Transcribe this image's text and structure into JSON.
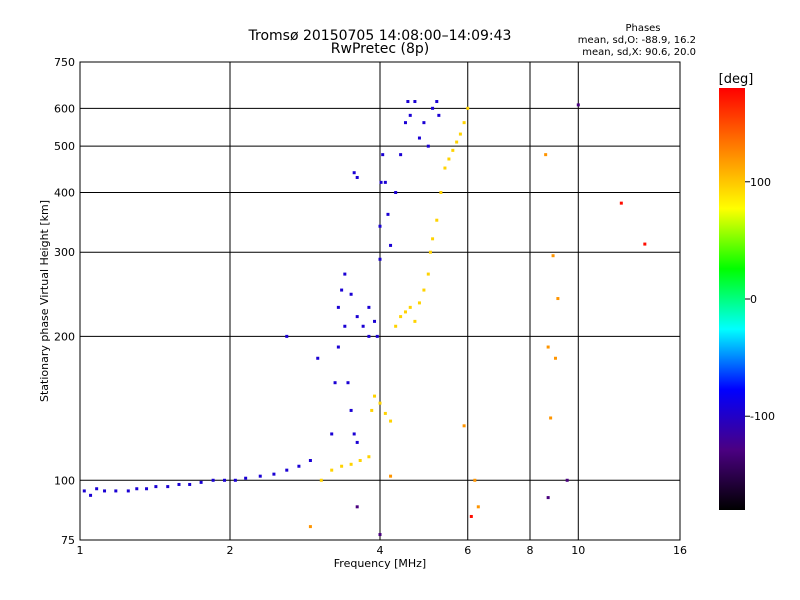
{
  "chart_data": {
    "type": "scatter",
    "title": "Tromsø 20150705 14:08:00–14:09:43",
    "subtitle": "RwPretec (8p)",
    "xlabel": "Frequency [MHz]",
    "ylabel": "Stationary phase Virtual Height [km]",
    "xscale": "log",
    "yscale": "log",
    "xlim": [
      1,
      16
    ],
    "ylim": [
      75,
      750
    ],
    "xticks": [
      1,
      2,
      4,
      6,
      8,
      10,
      16
    ],
    "yticks": [
      75,
      100,
      200,
      300,
      400,
      500,
      600,
      750
    ],
    "grid": true,
    "phase_info": {
      "title": "Phases",
      "line1": "mean, sd,O: -88.9, 16.2",
      "line2": "mean, sd,X: 90.6, 20.0"
    },
    "colorbar": {
      "label": "[deg]",
      "ticks": [
        "100",
        "0",
        "-100"
      ],
      "tick_values": [
        100,
        0,
        -100
      ],
      "range": [
        -180,
        180
      ],
      "colors": [
        "#000000",
        "#4b0082",
        "#0000ff",
        "#00ffff",
        "#00ff00",
        "#ffff00",
        "#ff8000",
        "#ff0000"
      ]
    },
    "series": [
      {
        "phase": -95,
        "points": [
          [
            1.02,
            95
          ],
          [
            1.05,
            93
          ],
          [
            1.08,
            96
          ],
          [
            1.12,
            95
          ],
          [
            1.18,
            95
          ],
          [
            1.25,
            95
          ],
          [
            1.3,
            96
          ],
          [
            1.36,
            96
          ],
          [
            1.42,
            97
          ],
          [
            1.5,
            97
          ],
          [
            1.58,
            98
          ],
          [
            1.66,
            98
          ],
          [
            1.75,
            99
          ],
          [
            1.85,
            100
          ],
          [
            1.95,
            100
          ],
          [
            2.05,
            100
          ],
          [
            2.15,
            101
          ],
          [
            2.3,
            102
          ],
          [
            2.45,
            103
          ],
          [
            2.6,
            105
          ],
          [
            2.75,
            107
          ],
          [
            2.9,
            110
          ],
          [
            3.2,
            125
          ],
          [
            3.25,
            160
          ],
          [
            3.3,
            190
          ],
          [
            3.3,
            230
          ],
          [
            3.35,
            250
          ],
          [
            3.4,
            210
          ],
          [
            3.45,
            160
          ],
          [
            3.5,
            140
          ],
          [
            3.55,
            125
          ],
          [
            3.6,
            120
          ],
          [
            3.4,
            270
          ],
          [
            3.5,
            245
          ],
          [
            3.6,
            220
          ],
          [
            3.7,
            210
          ],
          [
            3.8,
            200
          ],
          [
            3.8,
            230
          ],
          [
            3.9,
            215
          ],
          [
            3.95,
            200
          ],
          [
            4.0,
            290
          ],
          [
            4.0,
            340
          ],
          [
            4.02,
            420
          ],
          [
            4.05,
            480
          ],
          [
            4.1,
            420
          ],
          [
            4.15,
            360
          ],
          [
            4.2,
            310
          ],
          [
            4.3,
            400
          ],
          [
            4.4,
            480
          ],
          [
            4.5,
            560
          ],
          [
            4.55,
            620
          ],
          [
            4.6,
            580
          ],
          [
            4.7,
            620
          ],
          [
            4.8,
            520
          ],
          [
            4.9,
            560
          ],
          [
            5.0,
            500
          ],
          [
            5.1,
            600
          ],
          [
            5.2,
            620
          ],
          [
            5.25,
            580
          ],
          [
            3.55,
            440
          ],
          [
            3.6,
            430
          ],
          [
            2.6,
            200
          ],
          [
            3.0,
            180
          ]
        ]
      },
      {
        "phase": 95,
        "points": [
          [
            3.05,
            100
          ],
          [
            3.2,
            105
          ],
          [
            3.35,
            107
          ],
          [
            3.5,
            108
          ],
          [
            3.65,
            110
          ],
          [
            3.8,
            112
          ],
          [
            3.85,
            140
          ],
          [
            3.9,
            150
          ],
          [
            4.0,
            145
          ],
          [
            4.1,
            138
          ],
          [
            4.2,
            133
          ],
          [
            4.3,
            210
          ],
          [
            4.4,
            220
          ],
          [
            4.5,
            225
          ],
          [
            4.6,
            230
          ],
          [
            4.7,
            215
          ],
          [
            4.8,
            235
          ],
          [
            4.9,
            250
          ],
          [
            5.0,
            270
          ],
          [
            5.05,
            300
          ],
          [
            5.1,
            320
          ],
          [
            5.2,
            350
          ],
          [
            5.3,
            400
          ],
          [
            5.4,
            450
          ],
          [
            5.5,
            470
          ],
          [
            5.6,
            490
          ],
          [
            5.7,
            510
          ],
          [
            5.8,
            530
          ],
          [
            5.9,
            560
          ],
          [
            6.0,
            600
          ]
        ]
      },
      {
        "phase": 120,
        "points": [
          [
            8.6,
            480
          ],
          [
            8.9,
            295
          ],
          [
            9.1,
            240
          ],
          [
            8.7,
            190
          ],
          [
            9.0,
            180
          ],
          [
            8.8,
            135
          ],
          [
            5.9,
            130
          ],
          [
            6.3,
            88
          ],
          [
            6.2,
            100
          ],
          [
            4.2,
            102
          ],
          [
            2.9,
            80
          ]
        ]
      },
      {
        "phase": 175,
        "points": [
          [
            12.2,
            380
          ],
          [
            13.6,
            312
          ],
          [
            6.1,
            84
          ]
        ]
      },
      {
        "phase": -130,
        "points": [
          [
            8.7,
            92
          ],
          [
            9.5,
            100
          ],
          [
            10.0,
            610
          ],
          [
            3.6,
            88
          ],
          [
            4.0,
            77
          ]
        ]
      }
    ]
  }
}
